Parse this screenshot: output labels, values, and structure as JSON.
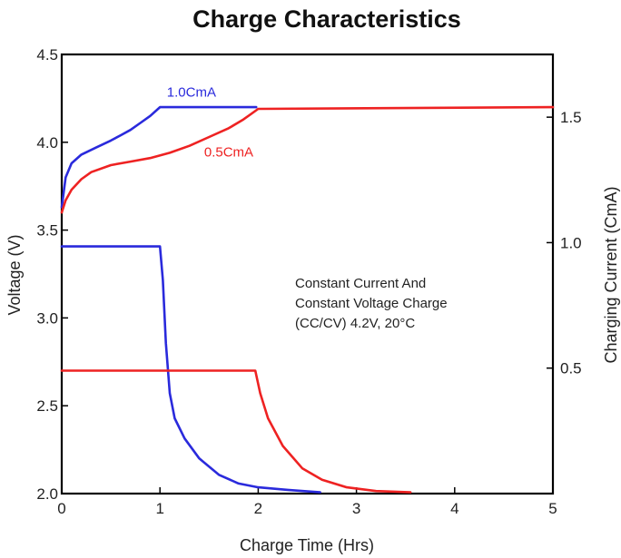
{
  "chart_data": {
    "type": "line",
    "title": "Charge Characteristics",
    "xlabel": "Charge Time (Hrs)",
    "ylabel_left": "Voltage (V)",
    "ylabel_right": "Charging Current (CmA)",
    "xlim": [
      0,
      5
    ],
    "ylim_left": [
      2.0,
      4.5
    ],
    "ylim_right": [
      0,
      1.75
    ],
    "x_ticks": [
      "0",
      "1",
      "2",
      "3",
      "4",
      "5"
    ],
    "y_left_ticks": [
      "2.0",
      "2.5",
      "3.0",
      "3.5",
      "4.0",
      "4.5"
    ],
    "y_right_ticks": [
      "0.5",
      "1.0",
      "1.5"
    ],
    "grid": false,
    "annotation": [
      "Constant Current And",
      "Constant Voltage Charge",
      "(CC/CV) 4.2V, 20°C"
    ],
    "colors": {
      "blue": "#2a2adc",
      "red": "#ee2222"
    },
    "series": [
      {
        "name": "1.0CmA",
        "axis": "left",
        "color": "#2a2adc",
        "label_pos": [
          1.07,
          4.26
        ],
        "points": [
          [
            0,
            3.63
          ],
          [
            0.04,
            3.8
          ],
          [
            0.1,
            3.88
          ],
          [
            0.2,
            3.93
          ],
          [
            0.35,
            3.97
          ],
          [
            0.5,
            4.01
          ],
          [
            0.6,
            4.04
          ],
          [
            0.7,
            4.07
          ],
          [
            0.8,
            4.11
          ],
          [
            0.9,
            4.15
          ],
          [
            1.0,
            4.2
          ],
          [
            1.98,
            4.2
          ]
        ]
      },
      {
        "name": "0.5CmA",
        "axis": "left",
        "color": "#ee2222",
        "label_pos": [
          1.45,
          3.92
        ],
        "points": [
          [
            0,
            3.6
          ],
          [
            0.04,
            3.67
          ],
          [
            0.1,
            3.73
          ],
          [
            0.2,
            3.79
          ],
          [
            0.3,
            3.83
          ],
          [
            0.5,
            3.87
          ],
          [
            0.7,
            3.89
          ],
          [
            0.9,
            3.91
          ],
          [
            1.1,
            3.94
          ],
          [
            1.3,
            3.98
          ],
          [
            1.5,
            4.03
          ],
          [
            1.7,
            4.08
          ],
          [
            1.85,
            4.13
          ],
          [
            2.0,
            4.19
          ],
          [
            5.0,
            4.2
          ]
        ]
      },
      {
        "name": "",
        "axis": "right",
        "color": "#2a2adc",
        "points": [
          [
            0,
            0.985
          ],
          [
            0.6,
            0.985
          ],
          [
            0.7,
            0.985
          ],
          [
            1.0,
            0.985
          ],
          [
            1.03,
            0.85
          ],
          [
            1.06,
            0.6
          ],
          [
            1.1,
            0.4
          ],
          [
            1.15,
            0.3
          ],
          [
            1.25,
            0.22
          ],
          [
            1.4,
            0.14
          ],
          [
            1.6,
            0.075
          ],
          [
            1.8,
            0.04
          ],
          [
            2.0,
            0.025
          ],
          [
            2.3,
            0.015
          ],
          [
            2.63,
            0.005
          ]
        ]
      },
      {
        "name": "",
        "axis": "right",
        "color": "#ee2222",
        "points": [
          [
            0,
            0.49
          ],
          [
            1.97,
            0.49
          ],
          [
            2.02,
            0.4
          ],
          [
            2.1,
            0.3
          ],
          [
            2.25,
            0.19
          ],
          [
            2.45,
            0.1
          ],
          [
            2.65,
            0.055
          ],
          [
            2.9,
            0.025
          ],
          [
            3.2,
            0.01
          ],
          [
            3.55,
            0.005
          ]
        ]
      }
    ]
  }
}
